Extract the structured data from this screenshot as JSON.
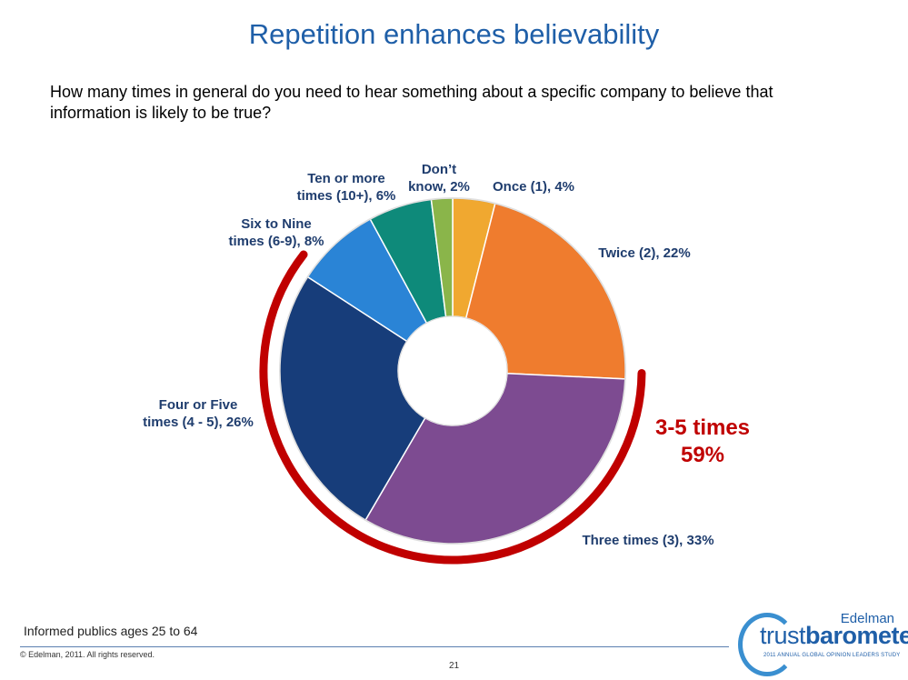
{
  "title": "Repetition enhances believability",
  "question": "How many times in general do you need to hear something about a specific company to believe that information is likely to be true?",
  "chart_data": {
    "type": "pie",
    "variant": "doughnut",
    "categories": [
      "Once (1)",
      "Twice (2)",
      "Three times (3)",
      "Four or Five times (4 - 5)",
      "Six to Nine times (6-9)",
      "Ten or more times (10+)",
      "Don’t know"
    ],
    "values": [
      4,
      22,
      33,
      26,
      8,
      6,
      2
    ],
    "unit": "%",
    "colors": [
      "#f0a830",
      "#ef7c2e",
      "#7d4b91",
      "#173d7a",
      "#2a84d6",
      "#0e8a7a",
      "#8ab54a"
    ],
    "labels": [
      [
        "Once (1), 4%"
      ],
      [
        "Twice (2), 22%"
      ],
      [
        "Three times (3), 33%"
      ],
      [
        "Four or Five",
        "times (4 - 5), 26%"
      ],
      [
        "Six to Nine",
        "times (6-9), 8%"
      ],
      [
        "Ten or more",
        "times (10+), 6%"
      ],
      [
        "Don’t",
        "know, 2%"
      ]
    ],
    "highlight": {
      "segments": [
        "Three times (3)",
        "Four or Five times (4 - 5)"
      ],
      "text": [
        "3-5 times",
        "59%"
      ],
      "color": "#c00000"
    }
  },
  "footnote": "Informed publics ages 25 to 64",
  "copyright": "© Edelman, 2011. All rights reserved.",
  "page_number": "21",
  "logo": {
    "brand": "Edelman",
    "word_light": "trust",
    "word_bold": "barometer",
    "subtitle": "2011 ANNUAL GLOBAL OPINION LEADERS STUDY"
  }
}
